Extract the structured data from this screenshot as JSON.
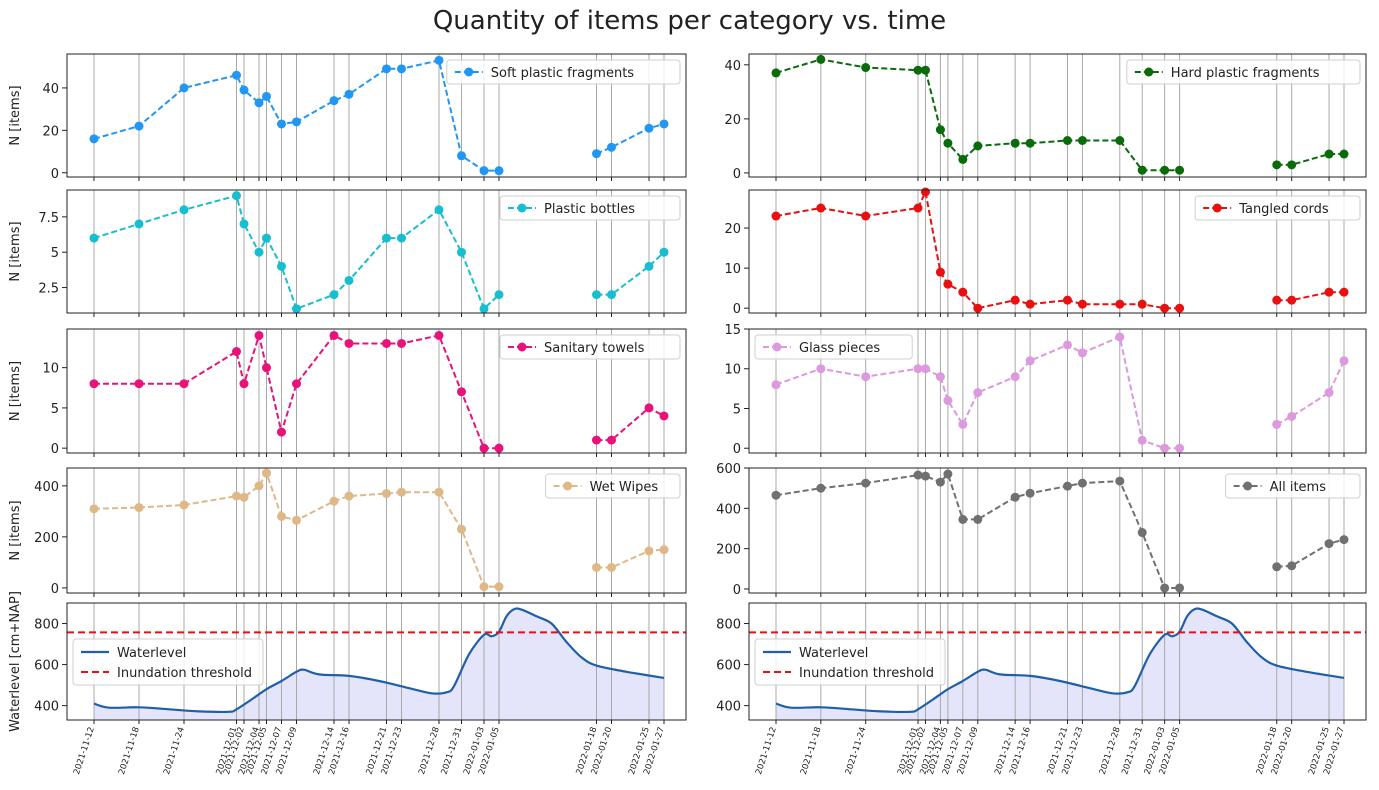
{
  "title": "Quantity of items per category vs. time",
  "colors": {
    "soft": "#2196f3",
    "hard": "#0a6b0a",
    "bottles": "#17becf",
    "cords": "#e81010",
    "towels": "#e8127a",
    "glass": "#dd99dd",
    "wipes": "#deb887",
    "all": "#707070",
    "water": "#1f5fa8",
    "fill": "#e4e4fb",
    "threshold": "#e81010",
    "vline": "#a8a8a8"
  },
  "chart_data": {
    "type": "line",
    "title": "Quantity of items per category vs. time",
    "x_axis_type": "date",
    "sample_dates": [
      "2021-11-12",
      "2021-11-18",
      "2021-11-24",
      "2021-12-01",
      "2021-12-02",
      "2021-12-04",
      "2021-12-05",
      "2021-12-07",
      "2021-12-09",
      "2021-12-14",
      "2021-12-16",
      "2021-12-21",
      "2021-12-23",
      "2021-12-28",
      "2021-12-31",
      "2022-01-03",
      "2022-01-05",
      "2022-01-18",
      "2022-01-20",
      "2022-01-25",
      "2022-01-27"
    ],
    "xtick_labels": [
      "2021-11-12",
      "2021-11-18",
      "2021-11-24",
      "2021-12-01",
      "2021-12-02",
      "2021-12-04",
      "2021-12-05",
      "2021-12-07",
      "2021-12-09",
      "2021-12-14",
      "2021-12-16",
      "2021-12-21",
      "2021-12-23",
      "2021-12-28",
      "2021-12-31",
      "2022-01-03",
      "2022-01-05",
      "2022-01-18",
      "2022-01-20",
      "2022-01-25",
      "2022-01-27"
    ],
    "xlim": [
      "2021-11-12",
      "2022-01-27"
    ],
    "subplots": [
      {
        "key": "soft",
        "col": 0,
        "row": 0,
        "ylabel": "N [items]",
        "legend": "Soft plastic fragments",
        "legend_loc": "upper right",
        "color": "#2196f3",
        "ylim": [
          -2,
          56
        ],
        "yticks": [
          0,
          20,
          40
        ],
        "values": [
          16,
          22,
          40,
          46,
          39,
          33,
          36,
          23,
          24,
          34,
          37,
          49,
          49,
          53,
          8,
          1,
          1,
          9,
          12,
          21,
          23
        ]
      },
      {
        "key": "hard",
        "col": 1,
        "row": 0,
        "ylabel": "",
        "legend": "Hard plastic fragments",
        "legend_loc": "upper right",
        "color": "#0a6b0a",
        "ylim": [
          -1.5,
          44
        ],
        "yticks": [
          0,
          20,
          40
        ],
        "values": [
          37,
          42,
          39,
          38,
          38,
          16,
          11,
          5,
          10,
          11,
          11,
          12,
          12,
          12,
          1,
          1,
          1,
          3,
          3,
          7,
          7
        ]
      },
      {
        "key": "bottles",
        "col": 0,
        "row": 1,
        "ylabel": "N [items]",
        "legend": "Plastic bottles",
        "legend_loc": "upper right",
        "color": "#17becf",
        "ylim": [
          0.7,
          9.4
        ],
        "yticks": [
          2.5,
          5.0,
          7.5
        ],
        "values": [
          6,
          7,
          8,
          9,
          7,
          5,
          6,
          4,
          1,
          2,
          3,
          6,
          6,
          8,
          5,
          1,
          2,
          2,
          2,
          4,
          5
        ]
      },
      {
        "key": "cords",
        "col": 1,
        "row": 1,
        "ylabel": "",
        "legend": "Tangled cords",
        "legend_loc": "upper right",
        "color": "#e81010",
        "ylim": [
          -1.2,
          29.5
        ],
        "yticks": [
          0,
          10,
          20
        ],
        "values": [
          23,
          25,
          23,
          25,
          29,
          9,
          6,
          4,
          0,
          2,
          1,
          2,
          1,
          1,
          1,
          0,
          0,
          2,
          2,
          4,
          4
        ]
      },
      {
        "key": "towels",
        "col": 0,
        "row": 2,
        "ylabel": "N [items]",
        "legend": "Sanitary towels",
        "legend_loc": "upper right",
        "color": "#e8127a",
        "ylim": [
          -0.6,
          14.8
        ],
        "yticks": [
          0,
          5,
          10
        ],
        "values": [
          8,
          8,
          8,
          12,
          8,
          14,
          10,
          2,
          8,
          14,
          13,
          13,
          13,
          14,
          7,
          0,
          0,
          1,
          1,
          5,
          4
        ]
      },
      {
        "key": "glass",
        "col": 1,
        "row": 2,
        "ylabel": "",
        "legend": "Glass pieces",
        "legend_loc": "upper left",
        "color": "#dd99dd",
        "ylim": [
          -0.6,
          15
        ],
        "yticks": [
          0,
          5,
          10,
          15
        ],
        "values": [
          8,
          10,
          9,
          10,
          10,
          9,
          6,
          3,
          7,
          9,
          11,
          13,
          12,
          14,
          1,
          0,
          0,
          3,
          4,
          7,
          11
        ]
      },
      {
        "key": "wipes",
        "col": 0,
        "row": 3,
        "ylabel": "N [items]",
        "legend": "Wet Wipes",
        "legend_loc": "upper right",
        "color": "#deb887",
        "ylim": [
          -20,
          470
        ],
        "yticks": [
          0,
          200,
          400
        ],
        "values": [
          310,
          315,
          325,
          360,
          355,
          400,
          450,
          280,
          265,
          340,
          360,
          370,
          375,
          375,
          230,
          5,
          5,
          80,
          80,
          145,
          150
        ]
      },
      {
        "key": "all",
        "col": 1,
        "row": 3,
        "ylabel": "",
        "legend": "All items",
        "legend_loc": "upper right",
        "color": "#707070",
        "ylim": [
          -20,
          600
        ],
        "yticks": [
          0,
          200,
          400,
          600
        ],
        "values": [
          465,
          500,
          525,
          565,
          560,
          530,
          570,
          345,
          345,
          455,
          475,
          510,
          525,
          535,
          280,
          5,
          5,
          110,
          115,
          225,
          245
        ]
      }
    ],
    "waterlevel": {
      "ylabel": "Waterlevel [cm+NAP]",
      "ylim": [
        330,
        900
      ],
      "yticks": [
        400,
        600,
        800
      ],
      "threshold": 757,
      "legend": [
        "Waterlevel",
        "Inundation threshold"
      ],
      "legend_loc": "center left",
      "series": [
        [
          "2021-11-12",
          410
        ],
        [
          "2021-11-14",
          390
        ],
        [
          "2021-11-18",
          392
        ],
        [
          "2021-11-22",
          382
        ],
        [
          "2021-11-26",
          372
        ],
        [
          "2021-11-30",
          370
        ],
        [
          "2021-12-01",
          382
        ],
        [
          "2021-12-03",
          430
        ],
        [
          "2021-12-05",
          480
        ],
        [
          "2021-12-07",
          520
        ],
        [
          "2021-12-09",
          565
        ],
        [
          "2021-12-10",
          575
        ],
        [
          "2021-12-12",
          552
        ],
        [
          "2021-12-16",
          545
        ],
        [
          "2021-12-20",
          520
        ],
        [
          "2021-12-24",
          485
        ],
        [
          "2021-12-27",
          460
        ],
        [
          "2021-12-29",
          465
        ],
        [
          "2021-12-30",
          495
        ],
        [
          "2022-01-01",
          650
        ],
        [
          "2022-01-03",
          745
        ],
        [
          "2022-01-04",
          738
        ],
        [
          "2022-01-05",
          760
        ],
        [
          "2022-01-06",
          835
        ],
        [
          "2022-01-07",
          870
        ],
        [
          "2022-01-08",
          868
        ],
        [
          "2022-01-10",
          835
        ],
        [
          "2022-01-12",
          800
        ],
        [
          "2022-01-14",
          710
        ],
        [
          "2022-01-16",
          635
        ],
        [
          "2022-01-18",
          595
        ],
        [
          "2022-01-22",
          565
        ],
        [
          "2022-01-27",
          535
        ]
      ]
    }
  }
}
